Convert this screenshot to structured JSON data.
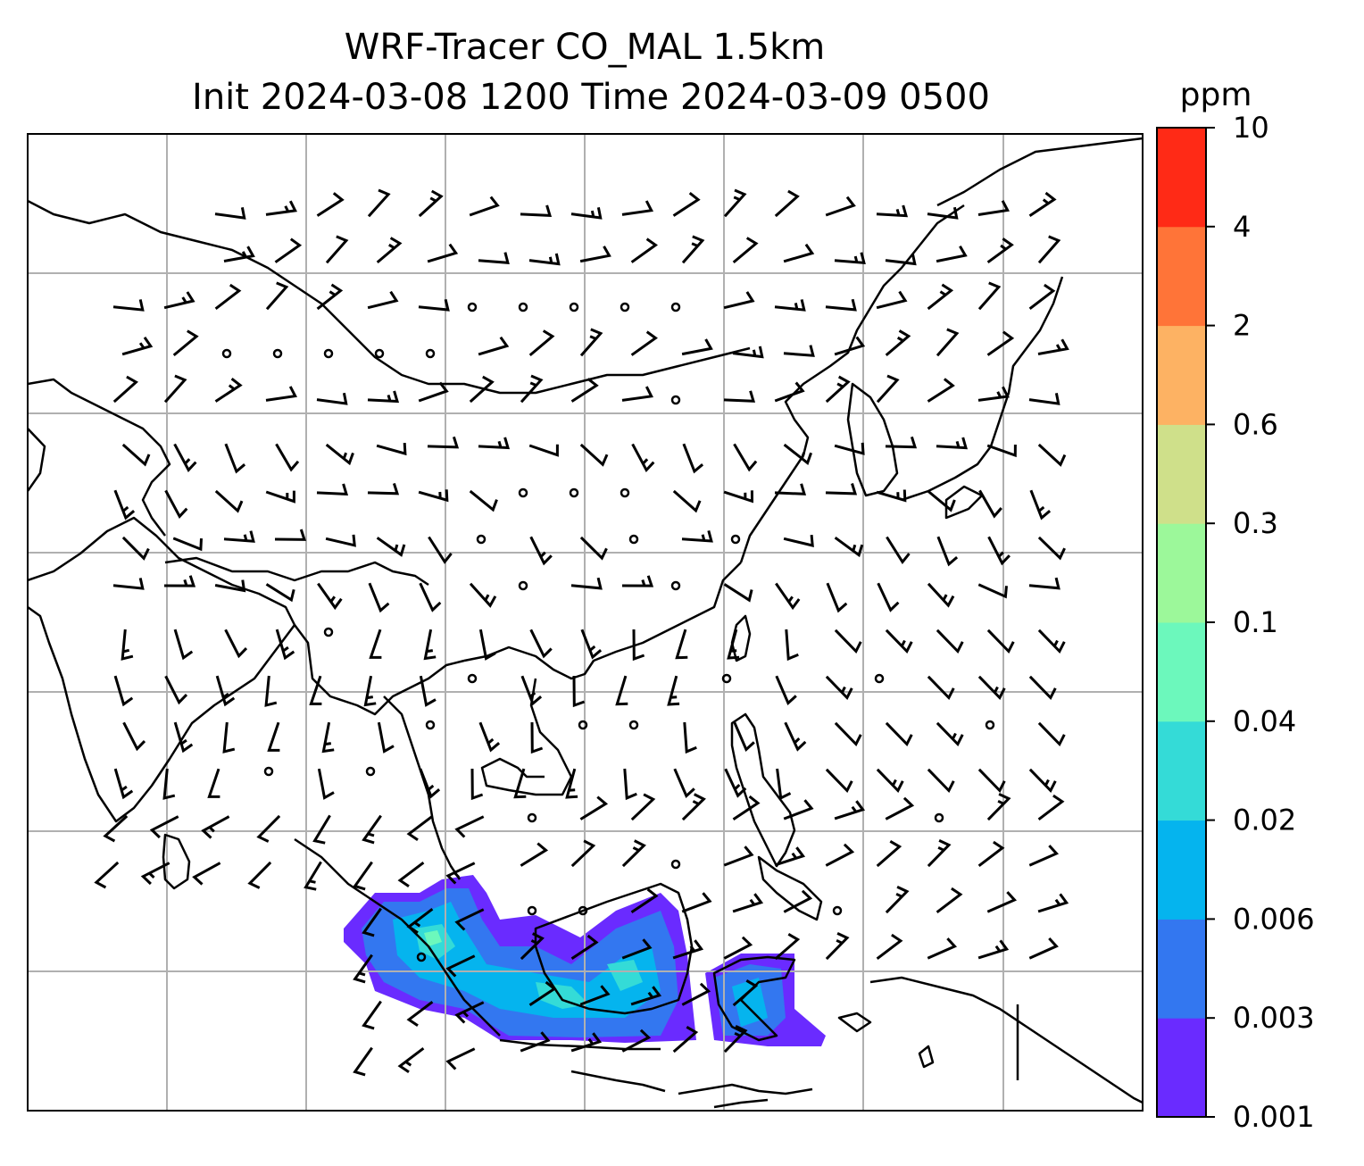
{
  "title": {
    "line1": "WRF-Tracer CO_MAL 1.5km",
    "line2": "Init 2024-03-08 1200 Time 2024-03-09 0500"
  },
  "colorbar": {
    "unit": "ppm",
    "levels": [
      "0.001",
      "0.003",
      "0.006",
      "0.02",
      "0.04",
      "0.1",
      "0.3",
      "0.6",
      "2",
      "4",
      "10"
    ],
    "colors": [
      "#6a2bff",
      "#3377f0",
      "#05b4ee",
      "#34dbd7",
      "#6cf8bc",
      "#9cf89a",
      "#cfe08a",
      "#fdb263",
      "#ff7438",
      "#ff2a16"
    ]
  },
  "map": {
    "gridlines": true,
    "coastline_color": "#000000",
    "barb_color": "#000000",
    "grid_color": "#b0b0b0"
  }
}
